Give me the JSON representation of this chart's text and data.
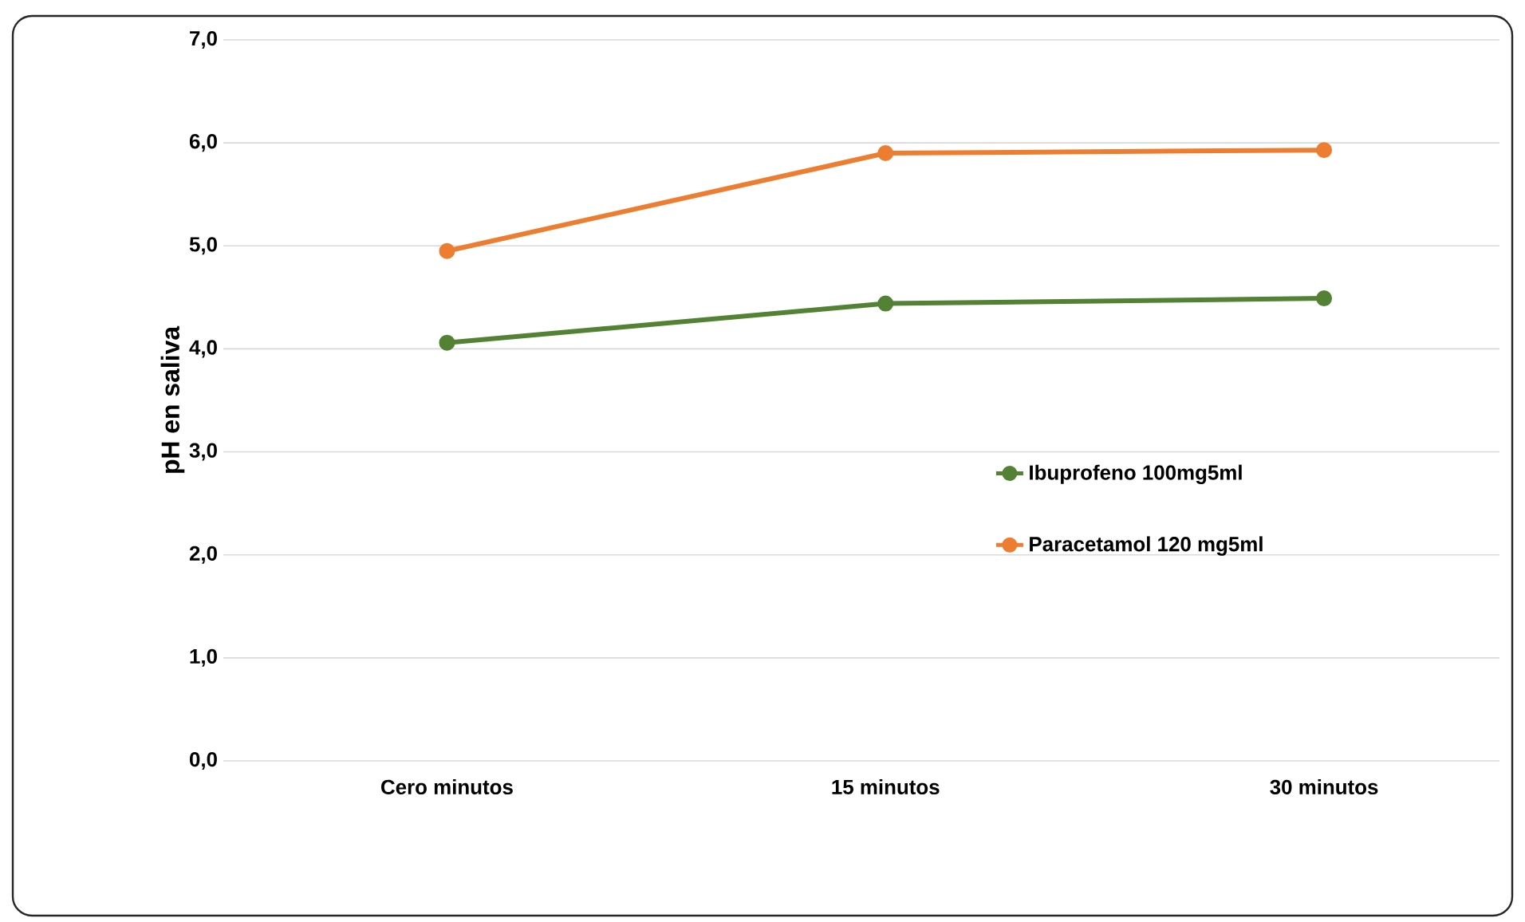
{
  "chart_data": {
    "type": "line",
    "ylabel": "pH en saliva",
    "categories": [
      "Cero minutos",
      "15 minutos",
      "30 minutos"
    ],
    "series": [
      {
        "name": "Ibuprofeno 100mg5ml",
        "color": "#548235",
        "values": [
          4.06,
          4.44,
          4.49
        ]
      },
      {
        "name": "Paracetamol 120 mg5ml",
        "color": "#ed7d31",
        "values": [
          4.95,
          5.9,
          5.93
        ]
      }
    ],
    "ylim": [
      0,
      7
    ],
    "yticks": [
      {
        "value": 0,
        "label": "0,0"
      },
      {
        "value": 1,
        "label": "1,0"
      },
      {
        "value": 2,
        "label": "2,0"
      },
      {
        "value": 3,
        "label": "3,0"
      },
      {
        "value": 4,
        "label": "4,0"
      },
      {
        "value": 5,
        "label": "5,0"
      },
      {
        "value": 6,
        "label": "6,0"
      },
      {
        "value": 7,
        "label": "7,0"
      }
    ],
    "grid": "y",
    "legend": "right",
    "marker": "circle",
    "line_style": "solid"
  }
}
